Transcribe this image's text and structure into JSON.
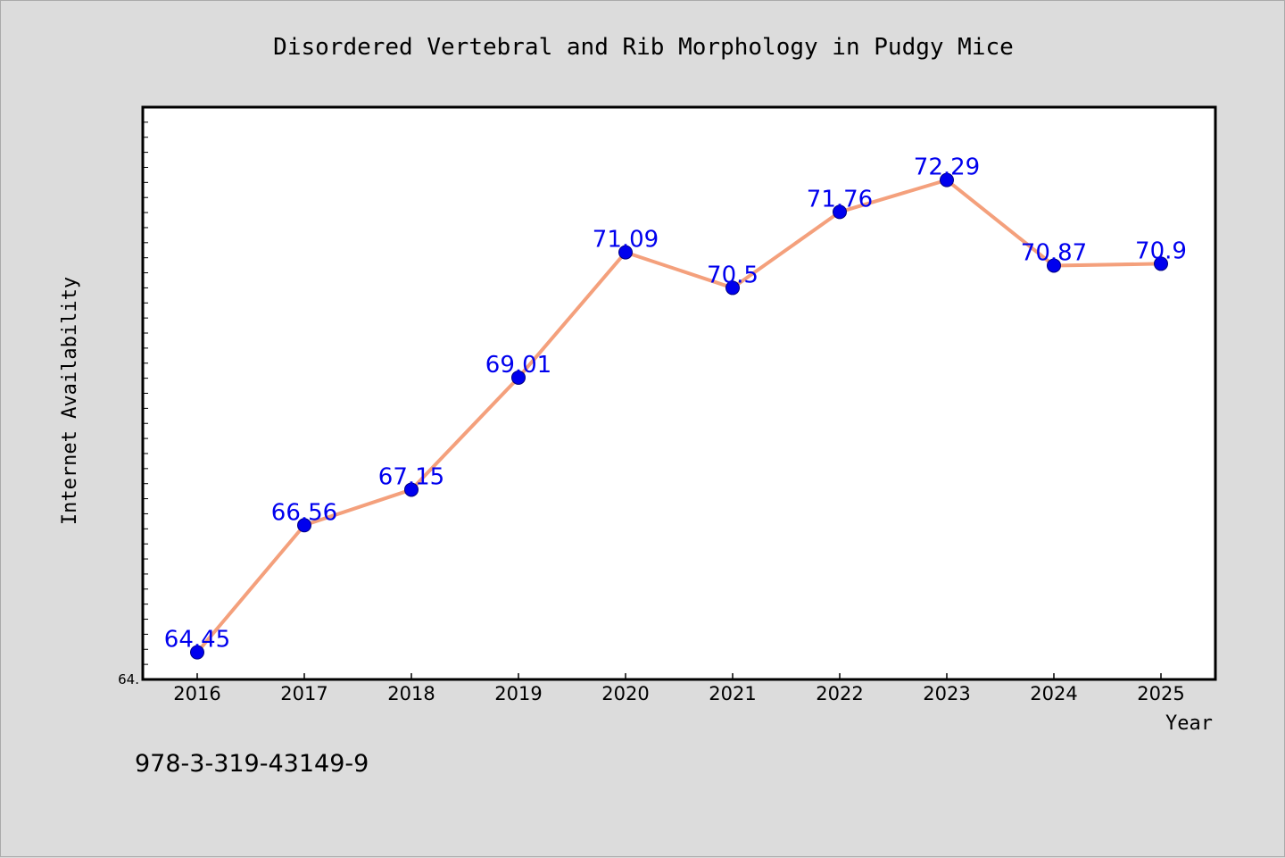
{
  "footer": {
    "isbn": "978-3-319-43149-9"
  },
  "y_min_tick_label": "64.",
  "chart_data": {
    "type": "line",
    "title": "Disordered Vertebral and Rib Morphology in Pudgy Mice",
    "xlabel": "Year",
    "ylabel": "Internet Availability",
    "categories": [
      "2016",
      "2017",
      "2018",
      "2019",
      "2020",
      "2021",
      "2022",
      "2023",
      "2024",
      "2025"
    ],
    "series": [
      {
        "values": [
          64.45,
          66.56,
          67.15,
          69.01,
          71.09,
          70.5,
          71.76,
          72.29,
          70.87,
          70.9
        ],
        "data_labels": [
          "64.45",
          "66.56",
          "67.15",
          "69.01",
          "71.09",
          "70.5",
          "71.76",
          "72.29",
          "70.87",
          "70.9"
        ]
      }
    ],
    "ylim": [
      64.0,
      73.5
    ],
    "grid": false,
    "legend": "none",
    "colors": {
      "line": "#f4a07c",
      "marker": "#0000ee",
      "marker_edge": "#000080",
      "data_label": "#0000ee",
      "plot_background": "#ffffff",
      "figure_background": "#dcdcdc"
    }
  }
}
